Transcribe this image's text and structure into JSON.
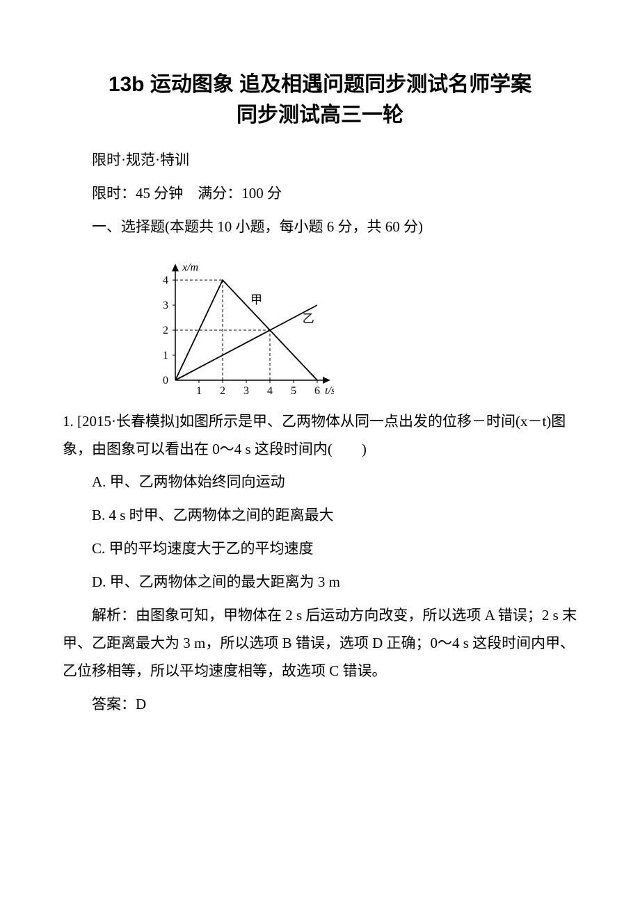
{
  "title_line1": "13b 运动图象 追及相遇问题同步测试名师学案",
  "title_line2": "同步测试高三一轮",
  "p1": "限时·规范·特训",
  "p2": "限时：45 分钟　满分：100 分",
  "p3": "一、选择题(本题共 10 小题，每小题 6 分，共 60 分)",
  "chart": {
    "type": "line",
    "y_label": "x/m",
    "x_label": "t/s",
    "x_ticks": [
      "1",
      "2",
      "3",
      "4",
      "5",
      "6"
    ],
    "y_ticks": [
      "0",
      "1",
      "2",
      "3",
      "4"
    ],
    "xlim": [
      0,
      6.5
    ],
    "ylim": [
      0,
      4.6
    ],
    "series_jia": {
      "label": "甲",
      "points": [
        [
          0,
          0
        ],
        [
          2,
          4
        ],
        [
          6,
          0
        ]
      ]
    },
    "series_yi": {
      "label": "乙",
      "points": [
        [
          0,
          0
        ],
        [
          4,
          2
        ],
        [
          6,
          3
        ]
      ]
    },
    "dash_refs": [
      {
        "from": [
          0,
          4
        ],
        "to": [
          2,
          4
        ]
      },
      {
        "from": [
          2,
          0
        ],
        "to": [
          2,
          4
        ]
      },
      {
        "from": [
          0,
          2
        ],
        "to": [
          4,
          2
        ]
      },
      {
        "from": [
          4,
          0
        ],
        "to": [
          4,
          2
        ]
      }
    ],
    "axis_color": "#000000",
    "line_color": "#000000",
    "background": "#ffffff",
    "tick_fontsize": 16,
    "label_fontsize": 16
  },
  "q1_stem": "1. [2015·长春模拟]如图所示是甲、乙两物体从同一点出发的位移－时间(x－t)图象，由图象可以看出在 0～4 s 这段时间内(　　)",
  "q1_A": "A. 甲、乙两物体始终同向运动",
  "q1_B": "B. 4 s 时甲、乙两物体之间的距离最大",
  "q1_C": "C. 甲的平均速度大于乙的平均速度",
  "q1_D": "D. 甲、乙两物体之间的最大距离为 3 m",
  "explain": "解析：由图象可知，甲物体在 2 s 后运动方向改变，所以选项 A 错误；2 s 末甲、乙距离最大为 3 m，所以选项 B 错误，选项 D 正确；0～4 s 这段时间内甲、乙位移相等，所以平均速度相等，故选项 C 错误。",
  "answer": "答案：D"
}
